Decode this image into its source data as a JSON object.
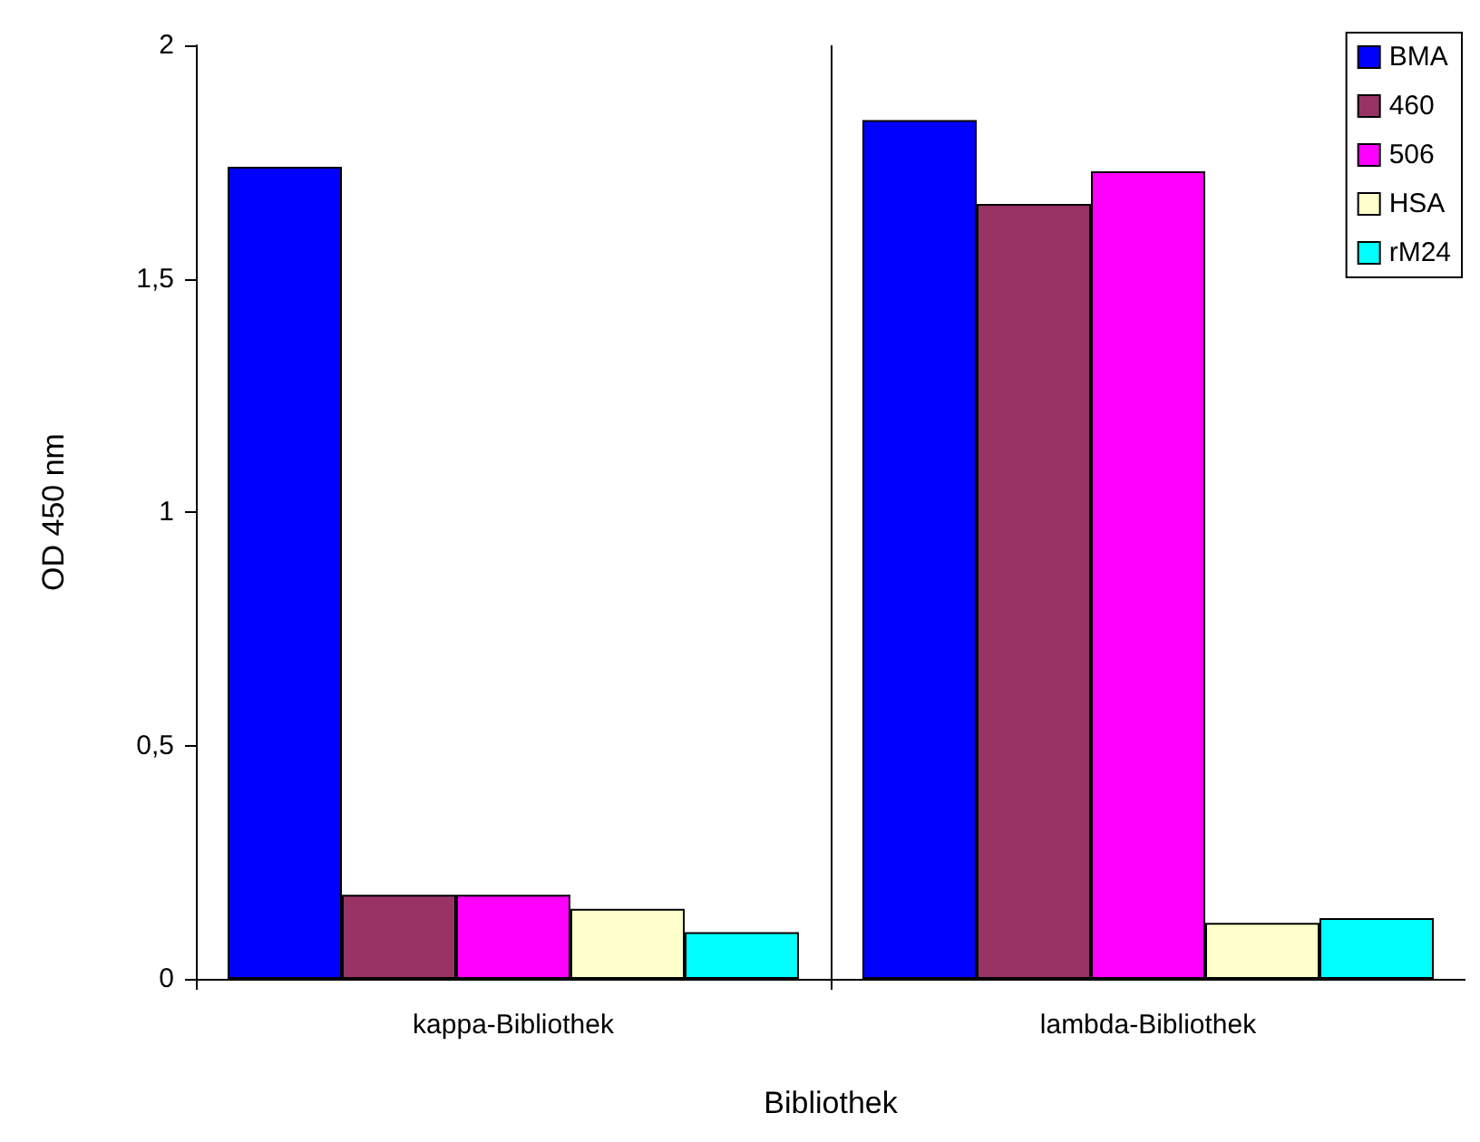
{
  "chart_data": {
    "type": "bar",
    "xlabel": "Bibliothek",
    "ylabel": "OD 450 nm",
    "categories": [
      "kappa-Bibliothek",
      "lambda-Bibliothek"
    ],
    "series": [
      {
        "name": "BMA",
        "color": "#0000ff",
        "values": [
          1.74,
          1.84
        ]
      },
      {
        "name": "460",
        "color": "#993366",
        "values": [
          0.18,
          1.66
        ]
      },
      {
        "name": "506",
        "color": "#ff00ff",
        "values": [
          0.18,
          1.73
        ]
      },
      {
        "name": "HSA",
        "color": "#ffffcc",
        "values": [
          0.15,
          0.12
        ]
      },
      {
        "name": "rM24",
        "color": "#00ffff",
        "values": [
          0.1,
          0.13
        ]
      }
    ],
    "ylim": [
      0,
      2
    ],
    "yticks": [
      0,
      {
        "value": 0.5,
        "label": "0,5"
      },
      1,
      {
        "value": 1.5,
        "label": "1,5"
      },
      2
    ],
    "grid": "x",
    "legend": "top right"
  }
}
